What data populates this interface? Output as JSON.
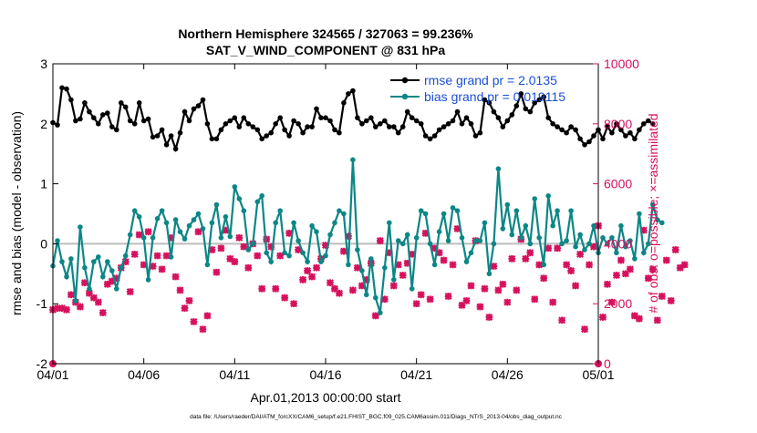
{
  "chart_data": {
    "type": "line",
    "title": [
      "Northern Hemisphere 324565 / 327063 = 99.236%",
      "SAT_V_WIND_COMPONENT @ 831 hPa"
    ],
    "xlabel": "Apr.01,2013 00:00:00 start",
    "ylabel_left": "rmse and bias (model - observation)",
    "ylabel_right": "# of obs: o=possible; ×=assimilated",
    "footer": "data file: /Users/raeder/DAI/ATM_forcXX/CAM6_setup/f.e21.FHIST_BGC.f09_025.CAM6assim.011/Diags_NTrS_2013-04/obs_diag_output.nc",
    "xlim": [
      0,
      30
    ],
    "ylim_left": [
      -2,
      3
    ],
    "ylim_right": [
      0,
      10000
    ],
    "xticks": [
      0,
      5,
      10,
      15,
      20,
      25,
      30
    ],
    "xtick_labels": [
      "04/01",
      "04/06",
      "04/11",
      "04/16",
      "04/21",
      "04/26",
      "05/01"
    ],
    "yticks_left": [
      -2,
      -1,
      0,
      1,
      2,
      3
    ],
    "ytick_labels_left": [
      "-2",
      "-1",
      "0",
      "1",
      "2",
      "3"
    ],
    "yticks_right": [
      0,
      2000,
      4000,
      6000,
      8000,
      10000
    ],
    "ytick_labels_right": [
      "0",
      "2000",
      "4000",
      "6000",
      "8000",
      "10000"
    ],
    "zero_line": 0,
    "legend": [
      {
        "label": "rmse grand pr = 2.0135",
        "color": "#000000"
      },
      {
        "label": "bias grand pr = 0.019115",
        "color": "#0c8686"
      }
    ],
    "series": [
      {
        "name": "rmse",
        "axis": "left",
        "color": "#000000",
        "x0": 0,
        "dx": 0.25,
        "values": [
          2.02,
          1.98,
          2.6,
          2.58,
          2.4,
          2.05,
          2.08,
          2.35,
          2.2,
          2.1,
          2.0,
          2.15,
          2.18,
          1.95,
          1.9,
          2.35,
          2.28,
          2.05,
          2.0,
          2.35,
          2.05,
          2.08,
          1.78,
          1.8,
          1.9,
          1.65,
          1.8,
          1.58,
          1.85,
          2.2,
          2.05,
          2.25,
          2.3,
          2.4,
          2.0,
          1.75,
          1.75,
          1.9,
          2.0,
          2.05,
          2.1,
          1.95,
          2.1,
          2.0,
          1.95,
          1.9,
          1.75,
          1.8,
          1.85,
          2.0,
          2.1,
          1.9,
          1.8,
          2.05,
          2.0,
          1.85,
          1.95,
          1.95,
          2.25,
          2.1,
          2.1,
          2.05,
          1.9,
          1.85,
          2.35,
          2.5,
          2.55,
          2.1,
          2.0,
          2.05,
          2.1,
          1.95,
          2.0,
          2.05,
          1.95,
          1.95,
          1.85,
          1.95,
          2.2,
          2.1,
          2.05,
          2.0,
          1.8,
          1.75,
          1.8,
          1.9,
          1.95,
          2.0,
          2.05,
          2.2,
          2.0,
          2.1,
          2.0,
          1.8,
          1.85,
          2.4,
          2.35,
          2.2,
          2.1,
          1.95,
          2.05,
          2.15,
          2.3,
          2.5,
          2.25,
          2.2,
          2.35,
          2.4,
          2.45,
          2.1,
          2.0,
          1.95,
          1.9,
          1.85,
          1.95,
          1.9,
          1.75,
          1.65,
          1.7,
          1.8,
          1.9,
          1.75,
          1.95,
          1.85,
          2.0,
          1.9,
          1.8,
          1.85,
          1.75,
          1.9,
          2.0,
          2.05,
          2.0
        ]
      },
      {
        "name": "bias",
        "axis": "left",
        "color": "#0c8686",
        "x0": 0,
        "dx": 0.25,
        "values": [
          -0.37,
          0.05,
          -0.3,
          -0.55,
          -0.25,
          -0.95,
          0.28,
          -0.4,
          -0.75,
          -0.3,
          -0.22,
          -0.55,
          -0.3,
          -0.45,
          -0.75,
          -0.4,
          -0.2,
          0.15,
          0.55,
          0.45,
          0.1,
          -0.6,
          0.1,
          0.42,
          0.55,
          0.35,
          -0.22,
          0.4,
          0.2,
          0.08,
          0.3,
          0.4,
          0.5,
          0.25,
          -0.35,
          0.35,
          0.65,
          0.1,
          0.45,
          0.12,
          0.95,
          0.75,
          0.55,
          -0.1,
          0.0,
          0.7,
          0.8,
          -0.15,
          -0.3,
          0.35,
          0.55,
          -0.15,
          -0.2,
          0.35,
          0.05,
          -0.15,
          -0.3,
          0.3,
          0.2,
          -0.3,
          -0.2,
          0.15,
          0.35,
          0.55,
          0.5,
          -0.35,
          1.4,
          -0.1,
          -0.45,
          -0.85,
          -0.25,
          -0.9,
          -1.15,
          -0.4,
          0.35,
          -0.6,
          0.05,
          0.0,
          0.15,
          -0.75,
          0.1,
          0.55,
          0.5,
          0.0,
          -0.35,
          0.2,
          0.5,
          0.05,
          0.6,
          0.55,
          0.1,
          -0.3,
          -0.15,
          0.05,
          0.05,
          0.35,
          -0.5,
          0.0,
          1.25,
          0.25,
          0.65,
          0.15,
          0.55,
          0.1,
          0.3,
          0.0,
          0.75,
          0.1,
          -0.35,
          0.8,
          0.3,
          0.55,
          0.0,
          0.05,
          0.55,
          -0.05,
          0.15,
          -0.1,
          0.0,
          0.3,
          -0.15,
          0.1,
          0.0,
          0.1,
          -0.15,
          0.3,
          -0.05,
          0.05,
          -0.25,
          0.5,
          -0.15,
          0.0,
          0.65,
          0.4,
          0.35
        ]
      },
      {
        "name": "obs possible",
        "axis": "right",
        "color": "#d6105c",
        "markers_at": [
          0,
          30
        ],
        "values": [
          0,
          0
        ]
      },
      {
        "name": "obs assimilated",
        "axis": "right",
        "color": "#d6105c",
        "x0": 0,
        "dx": 0.25,
        "values": [
          1800,
          1850,
          1850,
          1800,
          2300,
          2050,
          1900,
          2700,
          2350,
          2200,
          2050,
          1700,
          2650,
          2750,
          2850,
          3200,
          3400,
          2400,
          3650,
          4300,
          3300,
          4400,
          3250,
          3600,
          3150,
          3600,
          4200,
          2900,
          2450,
          1850,
          2100,
          1400,
          4400,
          1150,
          1600,
          3800,
          3050,
          3850,
          4450,
          3500,
          3400,
          4200,
          3900,
          3200,
          4000,
          3600,
          2500,
          4150,
          3900,
          2500,
          3600,
          2200,
          4350,
          2000,
          3800,
          2800,
          3100,
          2900,
          3200,
          3500,
          3950,
          2700,
          2500,
          2350,
          3750,
          4250,
          2450,
          3200,
          2600,
          2800,
          3350,
          1600,
          4100,
          2150,
          3700,
          2600,
          3300,
          2950,
          3350,
          3650,
          2000,
          2300,
          4350,
          2150,
          3850,
          3700,
          3450,
          2250,
          3300,
          4500,
          1950,
          2100,
          2600,
          4100,
          1900,
          2500,
          1550,
          3250,
          2450,
          2650,
          2050,
          3500,
          2450,
          4150,
          3500,
          3700,
          2150,
          3300,
          2850,
          3850,
          2050,
          3850,
          1450,
          3300,
          3100,
          2600,
          3650,
          1150,
          3300,
          3900,
          4600,
          1550,
          2650,
          2050,
          2950,
          3450,
          3000,
          3150,
          1600,
          1500,
          4450,
          2850,
          3150,
          1450,
          2250,
          3450,
          2100,
          3800,
          3200,
          3300
        ]
      }
    ]
  }
}
